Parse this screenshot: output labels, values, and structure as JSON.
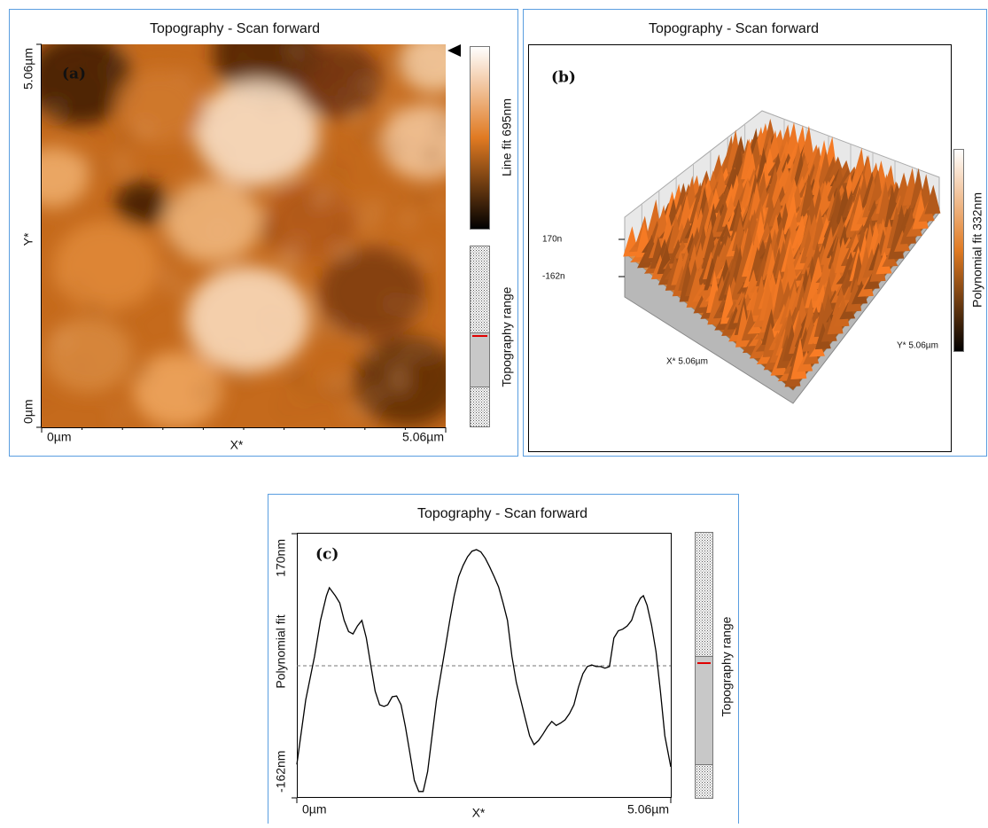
{
  "chart_data": [
    {
      "type": "image",
      "title": "Topography - Scan forward",
      "panel_label": "(a)",
      "x_label": "X*",
      "y_label": "Y*",
      "xlim": [
        0,
        5.06
      ],
      "xticks": [
        {
          "value": 0,
          "label": "0µm"
        },
        {
          "value": 5.06,
          "label": "5.06µm"
        }
      ],
      "ylim": [
        0,
        5.06
      ],
      "yticks": [
        {
          "value": 0,
          "label": "0µm"
        },
        {
          "value": 5.06,
          "label": "5.06µm"
        }
      ],
      "colorbar_label": "Line fit 695nm",
      "range_label": "Topography range"
    },
    {
      "type": "surface",
      "title": "Topography - Scan forward",
      "panel_label": "(b)",
      "x_label": "X* 5.06µm",
      "y_label": "Y* 5.06µm",
      "zlim": [
        -162,
        170
      ],
      "zticks": [
        {
          "value": 170,
          "label": "170n"
        },
        {
          "value": -162,
          "label": "-162n"
        }
      ],
      "colorbar_label": "Polynomial fit 332nm"
    },
    {
      "type": "line",
      "title": "Topography - Scan forward",
      "panel_label": "(c)",
      "x_label": "X*",
      "y_label": "Polynomial fit",
      "color": "#000000",
      "hline": 4,
      "xlim": [
        0,
        5.06
      ],
      "xticks": [
        {
          "value": 0,
          "label": "0µm"
        },
        {
          "value": 5.06,
          "label": "5.06µm"
        }
      ],
      "ylim": [
        -162,
        170
      ],
      "yticks": [
        {
          "value": -162,
          "label": "-162nm"
        },
        {
          "value": 170,
          "label": "170nm"
        }
      ],
      "range_label": "Topography range",
      "x": [
        0,
        0.12,
        0.24,
        0.32,
        0.4,
        0.44,
        0.52,
        0.58,
        0.64,
        0.7,
        0.76,
        0.82,
        0.88,
        0.94,
        1.0,
        1.06,
        1.12,
        1.18,
        1.23,
        1.29,
        1.35,
        1.41,
        1.47,
        1.53,
        1.59,
        1.65,
        1.71,
        1.77,
        1.83,
        1.89,
        1.95,
        2.01,
        2.07,
        2.13,
        2.19,
        2.25,
        2.31,
        2.37,
        2.43,
        2.49,
        2.55,
        2.61,
        2.67,
        2.73,
        2.79,
        2.85,
        2.91,
        2.97,
        3.03,
        3.09,
        3.15,
        3.21,
        3.27,
        3.33,
        3.39,
        3.45,
        3.51,
        3.57,
        3.63,
        3.69,
        3.75,
        3.81,
        3.87,
        3.93,
        3.99,
        4.05,
        4.11,
        4.17,
        4.23,
        4.29,
        4.35,
        4.41,
        4.47,
        4.53,
        4.59,
        4.65,
        4.69,
        4.74,
        4.8,
        4.86,
        4.92,
        4.98,
        5.06
      ],
      "values": [
        -120,
        -39,
        16,
        61,
        92,
        102,
        92,
        83,
        61,
        47,
        44,
        54,
        61,
        39,
        5,
        -28,
        -45,
        -47,
        -45,
        -35,
        -34,
        -45,
        -73,
        -106,
        -140,
        -154,
        -154,
        -129,
        -84,
        -39,
        -6,
        27,
        61,
        92,
        116,
        130,
        141,
        148,
        150,
        147,
        139,
        128,
        116,
        103,
        83,
        61,
        16,
        -17,
        -39,
        -62,
        -84,
        -95,
        -90,
        -82,
        -73,
        -66,
        -71,
        -68,
        -64,
        -56,
        -45,
        -23,
        -6,
        3,
        5,
        3,
        3,
        1,
        3,
        39,
        48,
        50,
        54,
        61,
        78,
        89,
        92,
        80,
        55,
        22,
        -28,
        -84,
        -123
      ]
    }
  ]
}
